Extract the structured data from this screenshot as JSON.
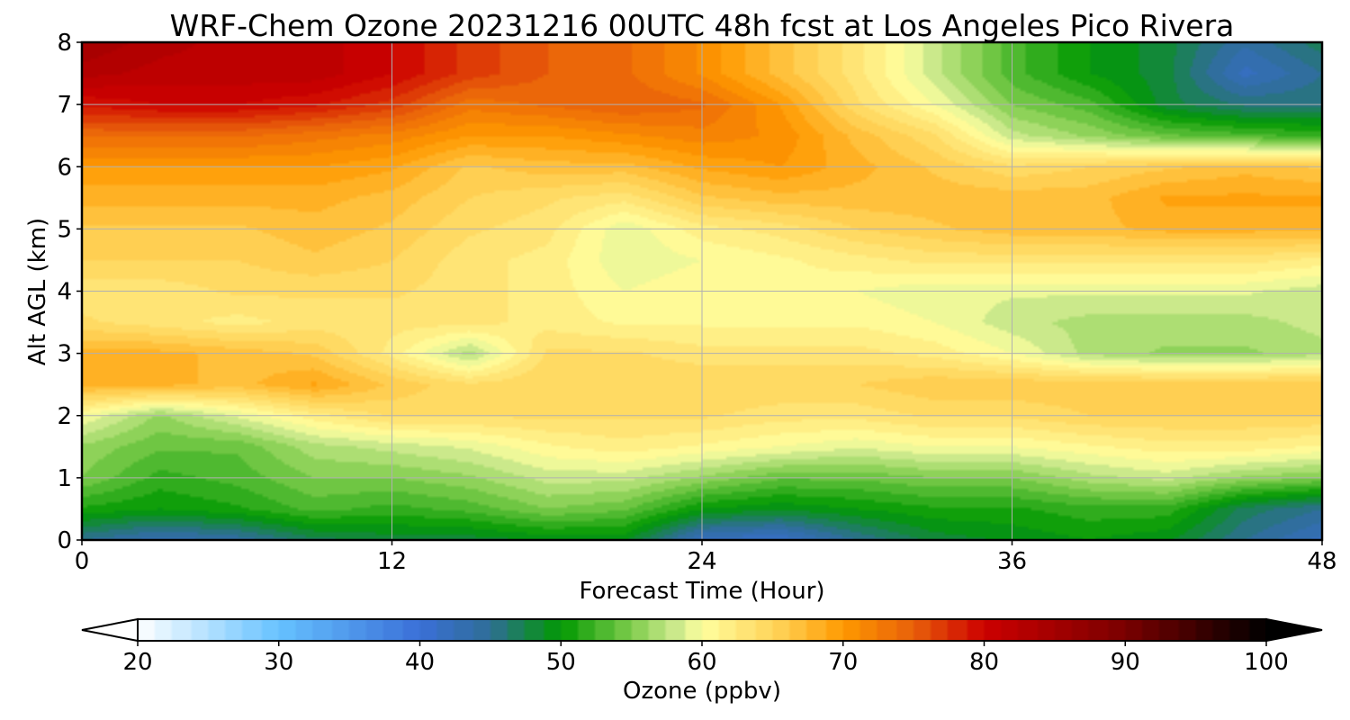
{
  "chart_data": {
    "type": "heatmap",
    "title": "WRF-Chem Ozone  20231216 00UTC 48h fcst at Los Angeles Pico Rivera",
    "xlabel": "Forecast Time (Hour)",
    "ylabel": "Alt AGL (km)",
    "xlim": [
      0,
      48
    ],
    "ylim": [
      0,
      8
    ],
    "xticks": [
      0,
      12,
      24,
      36,
      48
    ],
    "yticks": [
      0,
      1,
      2,
      3,
      4,
      5,
      6,
      7,
      8
    ],
    "grid": true,
    "colorbar": {
      "label": "Ozone  (ppbv)",
      "min": 20,
      "max": 100,
      "ticks": [
        20,
        30,
        40,
        50,
        60,
        70,
        80,
        90,
        100
      ],
      "extend": "both",
      "orientation": "horizontal",
      "stops": [
        {
          "v": 20,
          "c": "#ffffff"
        },
        {
          "v": 30,
          "c": "#66c2ff"
        },
        {
          "v": 40,
          "c": "#3a6fd8"
        },
        {
          "v": 45,
          "c": "#2f6e96"
        },
        {
          "v": 50,
          "c": "#009900"
        },
        {
          "v": 55,
          "c": "#7fcc4c"
        },
        {
          "v": 58,
          "c": "#c8e88a"
        },
        {
          "v": 60,
          "c": "#ffffa0"
        },
        {
          "v": 66,
          "c": "#ffcc4d"
        },
        {
          "v": 70,
          "c": "#ff9900"
        },
        {
          "v": 75,
          "c": "#e8600a"
        },
        {
          "v": 80,
          "c": "#cc0000"
        },
        {
          "v": 90,
          "c": "#7a0000"
        },
        {
          "v": 100,
          "c": "#000000"
        }
      ]
    },
    "x": [
      0,
      3,
      6,
      9,
      12,
      15,
      18,
      21,
      24,
      27,
      30,
      33,
      36,
      39,
      42,
      45,
      48
    ],
    "y": [
      0,
      0.5,
      1,
      1.5,
      2,
      2.5,
      3,
      3.5,
      4,
      4.5,
      5,
      5.5,
      6,
      6.5,
      7,
      7.5,
      8
    ],
    "z": [
      [
        45,
        43,
        44,
        47,
        48,
        48,
        49,
        49,
        42,
        41,
        45,
        48,
        49,
        50,
        49,
        45,
        42
      ],
      [
        51,
        50,
        51,
        53,
        52,
        53,
        55,
        54,
        50,
        49,
        50,
        51,
        51,
        52,
        52,
        47,
        45
      ],
      [
        55,
        52,
        53,
        55,
        55,
        56,
        58,
        58,
        56,
        54,
        54,
        55,
        55,
        57,
        58,
        56,
        55
      ],
      [
        56,
        54,
        54,
        57,
        58,
        59,
        61,
        62,
        61,
        60,
        59,
        60,
        60,
        61,
        62,
        62,
        61
      ],
      [
        60,
        56,
        59,
        62,
        64,
        64,
        64,
        64,
        64,
        63,
        63,
        64,
        64,
        65,
        65,
        65,
        65
      ],
      [
        68,
        68,
        67,
        69,
        66,
        64,
        65,
        65,
        65,
        65,
        65,
        66,
        66,
        66,
        66,
        66,
        66
      ],
      [
        68,
        68,
        67,
        66,
        62,
        57,
        64,
        64,
        63,
        63,
        63,
        62,
        60,
        57,
        56,
        56,
        57
      ],
      [
        64,
        63,
        62,
        63,
        63,
        63,
        62,
        61,
        61,
        61,
        61,
        60,
        58,
        57,
        57,
        57,
        58
      ],
      [
        63,
        63,
        64,
        64,
        64,
        63,
        62,
        60,
        61,
        61,
        60,
        59,
        59,
        59,
        59,
        59,
        58
      ],
      [
        65,
        65,
        65,
        66,
        65,
        63,
        62,
        59,
        60,
        61,
        62,
        63,
        63,
        63,
        63,
        63,
        62
      ],
      [
        66,
        66,
        66,
        67,
        66,
        64,
        63,
        59,
        62,
        63,
        65,
        66,
        67,
        67,
        68,
        68,
        68
      ],
      [
        68,
        68,
        68,
        68,
        67,
        65,
        64,
        63,
        66,
        67,
        67,
        67,
        67,
        67,
        69,
        69,
        69
      ],
      [
        70,
        70,
        70,
        70,
        69,
        66,
        67,
        67,
        69,
        70,
        68,
        66,
        64,
        65,
        66,
        67,
        66
      ],
      [
        74,
        74,
        74,
        73,
        72,
        70,
        70,
        71,
        72,
        71,
        67,
        64,
        58,
        56,
        54,
        53,
        52
      ],
      [
        79,
        80,
        80,
        79,
        77,
        73,
        74,
        75,
        74,
        70,
        64,
        60,
        55,
        53,
        48,
        46,
        46
      ],
      [
        83,
        82,
        82,
        82,
        80,
        77,
        75,
        74,
        71,
        67,
        63,
        58,
        53,
        50,
        48,
        42,
        45
      ],
      [
        85,
        83,
        82,
        82,
        80,
        77,
        75,
        74,
        71,
        67,
        63,
        58,
        53,
        50,
        48,
        44,
        47
      ]
    ]
  }
}
